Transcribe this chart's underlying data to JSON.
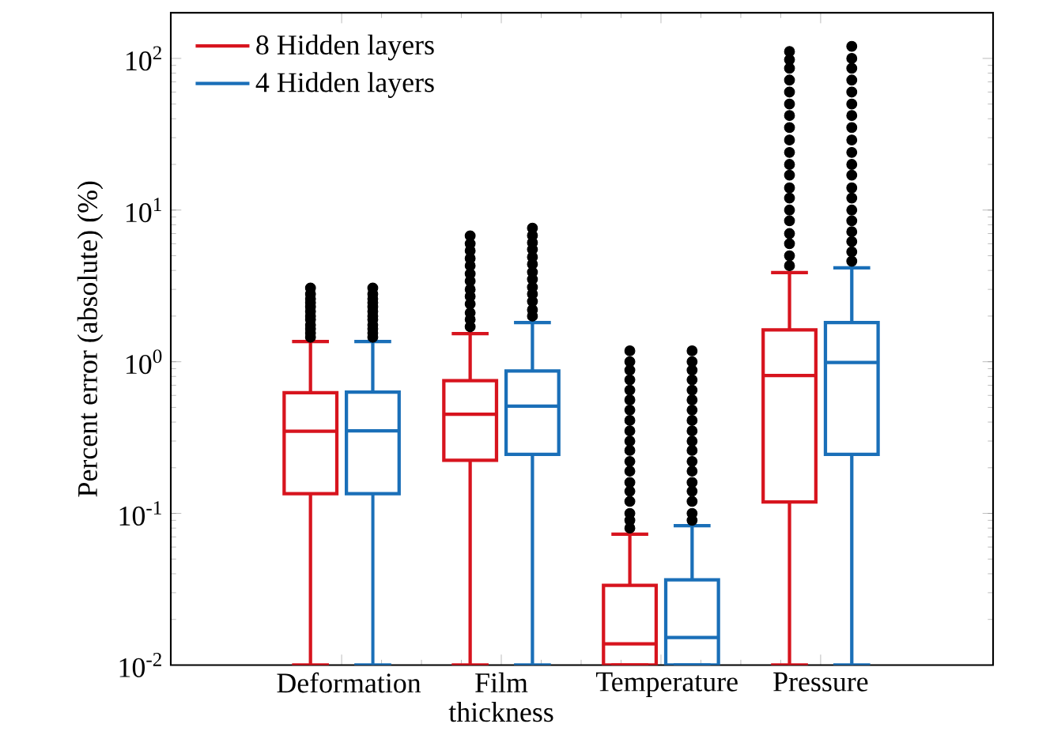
{
  "chart_data": {
    "type": "box",
    "ylabel": "Percent error (absolute) (%)",
    "categories": [
      "Deformation",
      "Film thickness",
      "Temperature",
      "Pressure"
    ],
    "log": "y",
    "ylim": [
      0.01,
      200
    ],
    "yticks": [
      {
        "value": 0.01,
        "label": "10$^{-2}$"
      },
      {
        "value": 0.1,
        "label": "10$^{-1}$"
      },
      {
        "value": 1,
        "label": "10$^{0}$"
      },
      {
        "value": 10,
        "label": "10$^{1}$"
      },
      {
        "value": 100,
        "label": "10$^{2}$"
      }
    ],
    "legend": "top left",
    "series": [
      {
        "name": "8 Hidden layers",
        "color": "#d7141e",
        "boxes": [
          {
            "low": 0.01,
            "q1": 0.135,
            "median": 0.348,
            "q3": 0.625,
            "high": 1.36,
            "outliers": [
              1.45,
              1.55,
              1.65,
              1.75,
              1.9,
              2.0,
              2.15,
              2.3,
              2.45,
              2.6,
              2.8,
              3.06
            ]
          },
          {
            "low": 0.01,
            "q1": 0.224,
            "median": 0.45,
            "q3": 0.75,
            "high": 1.53,
            "outliers": [
              1.7,
              1.9,
              2.1,
              2.4,
              2.7,
              3.0,
              3.4,
              3.8,
              4.3,
              4.8,
              5.4,
              6.0,
              6.76
            ]
          },
          {
            "low": 0.01,
            "q1": 0.01,
            "median": 0.0138,
            "q3": 0.0335,
            "high": 0.073,
            "outliers": [
              0.08,
              0.09,
              0.1,
              0.12,
              0.14,
              0.16,
              0.19,
              0.22,
              0.26,
              0.3,
              0.35,
              0.41,
              0.48,
              0.56,
              0.65,
              0.76,
              0.88,
              1.0,
              1.18
            ]
          },
          {
            "low": 0.01,
            "q1": 0.119,
            "median": 0.81,
            "q3": 1.62,
            "high": 3.87,
            "outliers": [
              4.3,
              5,
              6,
              7,
              8.5,
              10,
              12,
              14,
              17,
              20,
              24,
              29,
              35,
              42,
              50,
              60,
              72,
              86,
              98,
              111
            ]
          }
        ]
      },
      {
        "name": "4 Hidden layers",
        "color": "#1a6fb8",
        "boxes": [
          {
            "low": 0.01,
            "q1": 0.135,
            "median": 0.35,
            "q3": 0.63,
            "high": 1.36,
            "outliers": [
              1.45,
              1.55,
              1.65,
              1.75,
              1.9,
              2.0,
              2.15,
              2.3,
              2.45,
              2.6,
              2.8,
              3.06
            ]
          },
          {
            "low": 0.01,
            "q1": 0.245,
            "median": 0.51,
            "q3": 0.87,
            "high": 1.81,
            "outliers": [
              2.0,
              2.2,
              2.5,
              2.8,
              3.1,
              3.5,
              3.9,
              4.4,
              4.9,
              5.5,
              6.1,
              6.8,
              7.6
            ]
          },
          {
            "low": 0.01,
            "q1": 0.01,
            "median": 0.0152,
            "q3": 0.0365,
            "high": 0.083,
            "outliers": [
              0.09,
              0.1,
              0.12,
              0.14,
              0.16,
              0.19,
              0.22,
              0.26,
              0.3,
              0.35,
              0.41,
              0.48,
              0.56,
              0.65,
              0.76,
              0.88,
              1.0,
              1.18
            ]
          },
          {
            "low": 0.01,
            "q1": 0.245,
            "median": 0.99,
            "q3": 1.81,
            "high": 4.16,
            "outliers": [
              4.6,
              5.3,
              6.2,
              7.2,
              8.5,
              10,
              12,
              14,
              17,
              20,
              24,
              29,
              35,
              42,
              50,
              60,
              72,
              86,
              100,
              120
            ]
          }
        ]
      }
    ]
  }
}
